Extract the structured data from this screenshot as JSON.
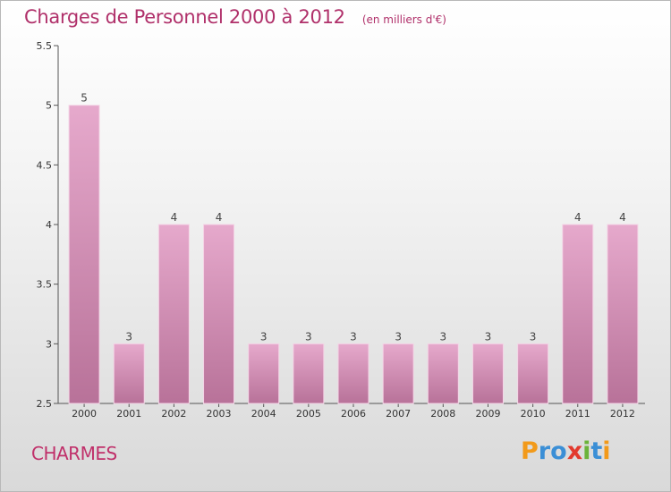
{
  "chart_data": {
    "type": "bar",
    "title": "Charges de Personnel 2000 à 2012",
    "subtitle": "(en milliers d'€)",
    "categories": [
      "2000",
      "2001",
      "2002",
      "2003",
      "2004",
      "2005",
      "2006",
      "2007",
      "2008",
      "2009",
      "2010",
      "2011",
      "2012"
    ],
    "values": [
      5,
      3,
      4,
      4,
      3,
      3,
      3,
      3,
      3,
      3,
      3,
      4,
      4
    ],
    "value_labels": [
      "5",
      "3",
      "4",
      "4",
      "3",
      "3",
      "3",
      "3",
      "3",
      "3",
      "3",
      "4",
      "4"
    ],
    "ylim": [
      2.5,
      5.5
    ],
    "yticks": [
      "2.5",
      "3",
      "3.5",
      "4",
      "4.5",
      "5",
      "5.5"
    ],
    "xlabel": "",
    "ylabel": "",
    "grid": false,
    "bar_color": "#d88cb5"
  },
  "footer": {
    "commune": "CHARMES",
    "logo_letters": [
      {
        "char": "P",
        "color": "#f29a1a"
      },
      {
        "char": "r",
        "color": "#3b8fd6"
      },
      {
        "char": "o",
        "color": "#3b8fd6"
      },
      {
        "char": "x",
        "color": "#e23a2e"
      },
      {
        "char": "i",
        "color": "#6bb33a"
      },
      {
        "char": "t",
        "color": "#3b8fd6"
      },
      {
        "char": "i",
        "color": "#f29a1a"
      }
    ]
  }
}
